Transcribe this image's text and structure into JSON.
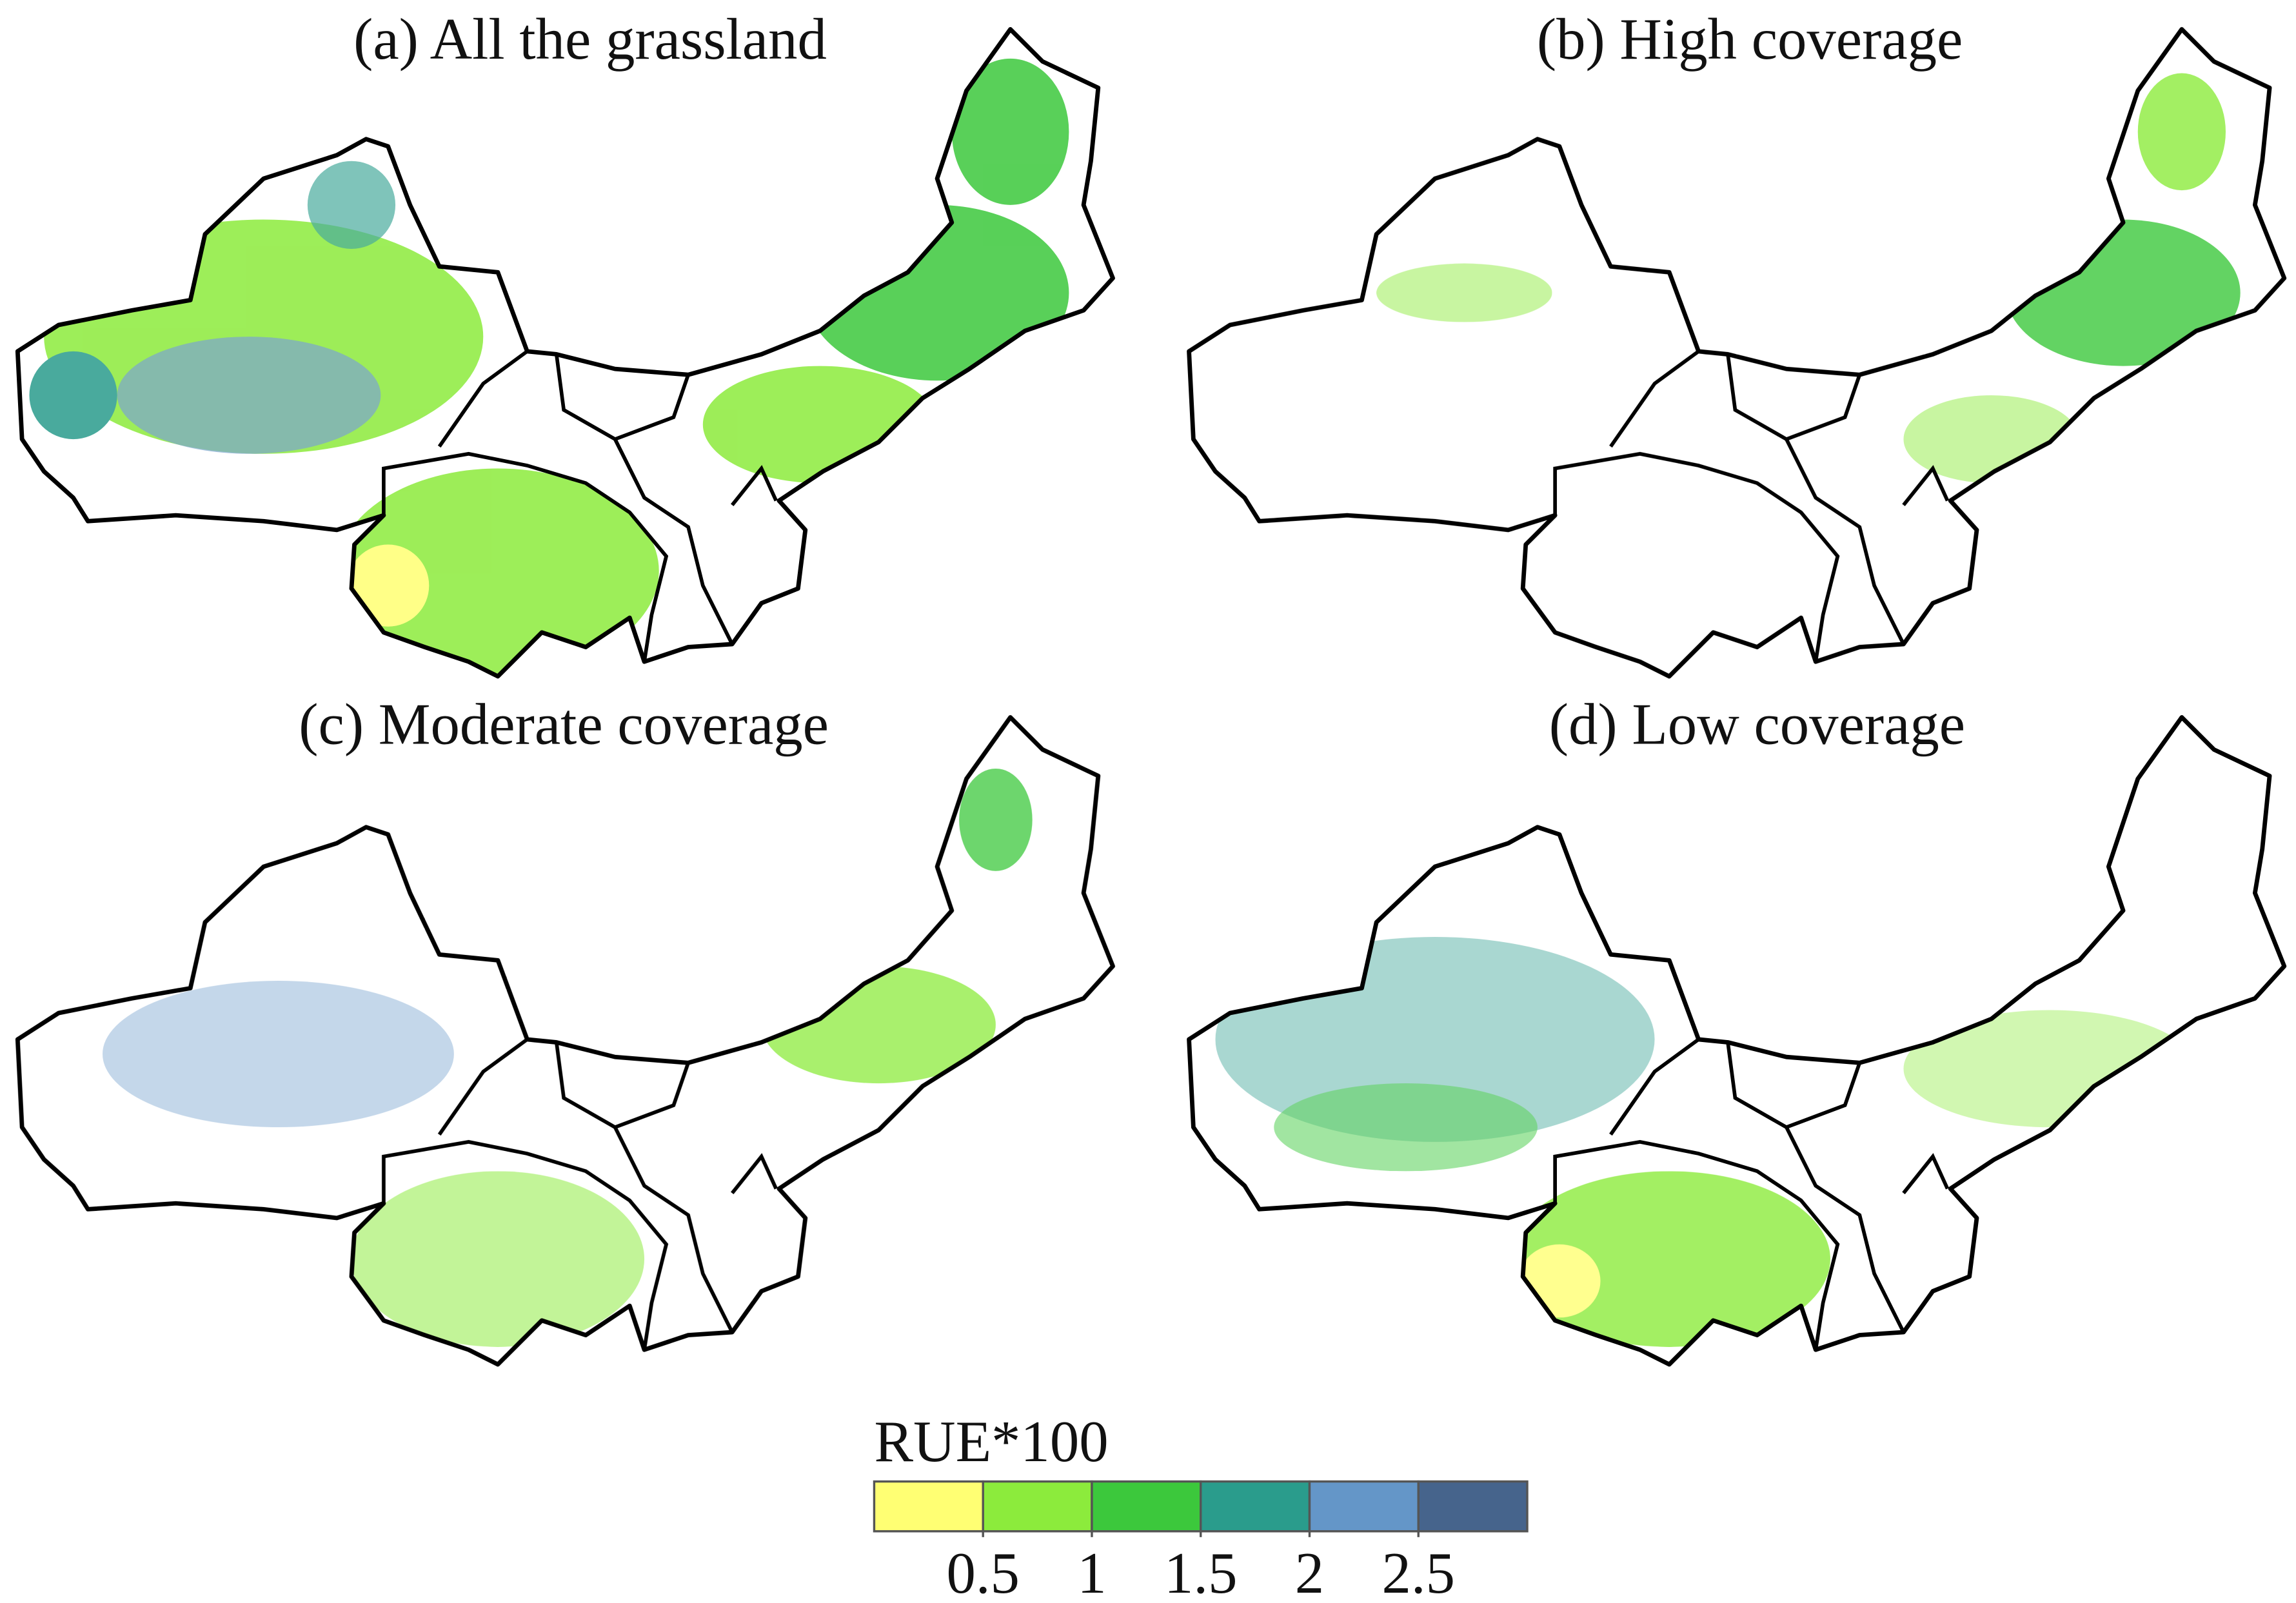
{
  "panels": [
    {
      "title": "(a) All the grassland"
    },
    {
      "title": "(b) High coverage"
    },
    {
      "title": "(c) Moderate coverage"
    },
    {
      "title": "(d) Low coverage"
    }
  ],
  "legend": {
    "title": "RUE*100",
    "colors": [
      "#ffff73",
      "#8ceb3c",
      "#3cc83c",
      "#2a9c8c",
      "#6496c8",
      "#46648c"
    ],
    "lim": [
      0,
      3
    ],
    "ticks": [
      0.5,
      1,
      1.5,
      2,
      2.5
    ]
  }
}
